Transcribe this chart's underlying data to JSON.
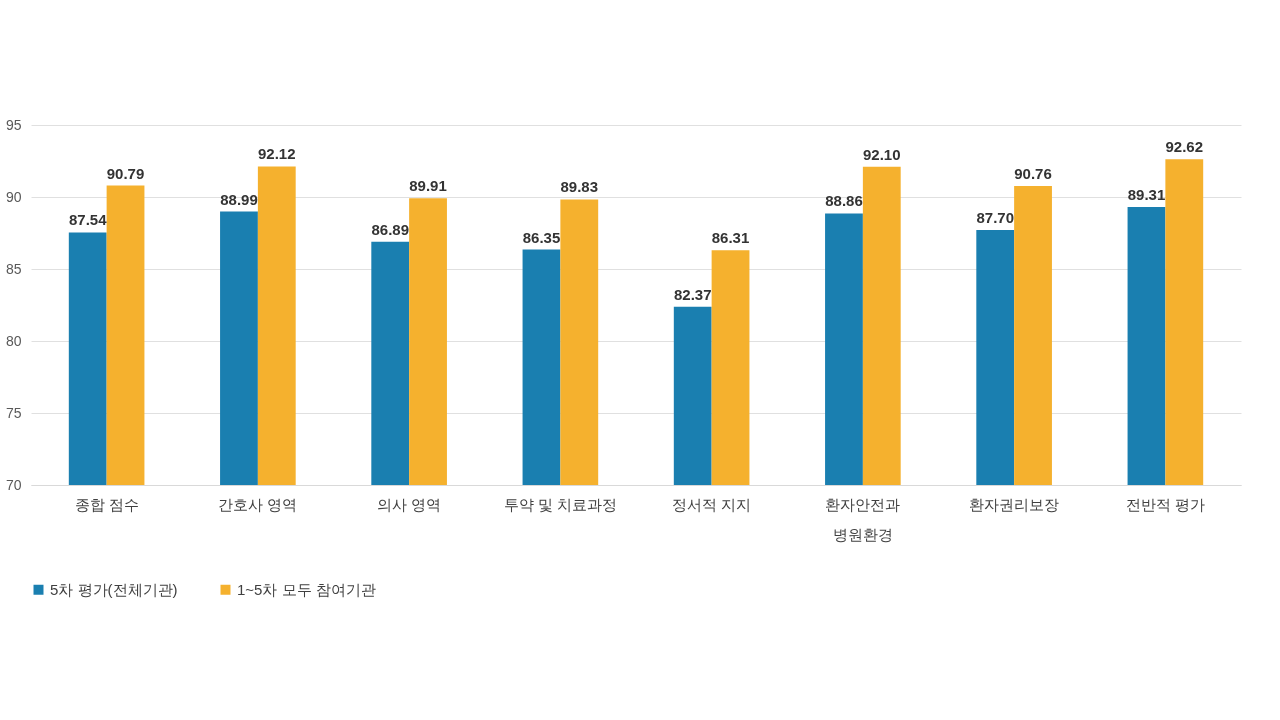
{
  "chart_data": {
    "type": "bar",
    "categories": [
      "종합 점수",
      "간호사 영역",
      "의사 영역",
      "투약 및 치료과정",
      "정서적 지지",
      "환자안전과\n병원환경",
      "환자권리보장",
      "전반적 평가"
    ],
    "series": [
      {
        "name": "5차 평가(전체기관)",
        "color": "#1a7fb0",
        "values": [
          87.54,
          88.99,
          86.89,
          86.35,
          82.37,
          88.86,
          87.7,
          89.31
        ]
      },
      {
        "name": "1~5차 모두 참여기관",
        "color": "#f5b12e",
        "values": [
          90.79,
          92.12,
          89.91,
          89.83,
          86.31,
          92.1,
          90.76,
          92.62
        ]
      }
    ],
    "value_labels": [
      [
        "87.54",
        "88.99",
        "86.89",
        "86.35",
        "82.37",
        "88.86",
        "87.70",
        "89.31"
      ],
      [
        "90.79",
        "92.12",
        "89.91",
        "89.83",
        "86.31",
        "92.10",
        "90.76",
        "92.62"
      ]
    ],
    "ylim": [
      70,
      95
    ],
    "yticks": [
      70,
      75,
      80,
      85,
      90,
      95
    ],
    "grid": "y",
    "legend": "bottom"
  }
}
